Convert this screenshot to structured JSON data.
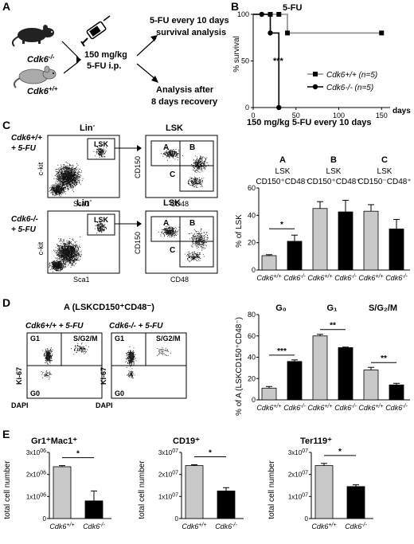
{
  "panels": {
    "A": {
      "letter": "A",
      "ko_label": "Cdk6",
      "ko_sup": "-/-",
      "wt_label": "Cdk6",
      "wt_sup": "+/+",
      "dose_line1": "150 mg/kg",
      "dose_line2": "5-FU i.p.",
      "outcome1_line1": "5-FU every 10 days",
      "outcome1_line2": "survival analysis",
      "outcome2_line1": "Analysis after",
      "outcome2_line2": "8 days recovery"
    },
    "B": {
      "letter": "B",
      "treatment": "150 mg/kg 5-FU every 10 days",
      "significance": "***",
      "days_label": "days"
    },
    "C": {
      "letter": "C",
      "flow_wt_label": "Cdk6+/+",
      "flow_ko_label": "Cdk6-/-",
      "flow_treatment": "+ 5-FU",
      "plot1_title": "Lin",
      "plot1_title_sup": "-",
      "plot2_title": "LSK",
      "gate_lsk": "LSK",
      "gate_a": "A",
      "gate_b": "B",
      "gate_c": "C",
      "xaxis_sca1": "Sca1",
      "yaxis_ckit": "c-kit",
      "xaxis_cd48": "CD48",
      "yaxis_cd150": "CD150",
      "group_A_letter": "A",
      "group_A_name": "LSK",
      "group_A_marker": "CD150⁺CD48⁻",
      "group_B_letter": "B",
      "group_B_name": "LSK",
      "group_B_marker": "CD150⁺CD48⁺",
      "group_C_letter": "C",
      "group_C_name": "LSK",
      "group_C_marker": "CD150⁻CD48⁺"
    },
    "D": {
      "letter": "D",
      "title": "A (LSKCD150⁺CD48⁻)",
      "wt_title": "Cdk6+/+ + 5-FU",
      "ko_title": "Cdk6-/- + 5-FU",
      "gate_g1": "G1",
      "gate_s": "S/G2/M",
      "gate_g0": "G0",
      "yaxis_ki67": "Ki-67",
      "xaxis_dapi": "DAPI",
      "phase_g0": "G₀",
      "phase_g1": "G₁",
      "phase_s": "S/G₂/M"
    },
    "E": {
      "letter": "E"
    }
  },
  "genotype_labels": {
    "wt": "Cdk6+/+",
    "ko": "Cdk6-/-"
  },
  "colors": {
    "wt": "#c8c8c8",
    "ko": "#000000",
    "survival_wt": "#8a8a8a",
    "survival_ko": "#000000"
  },
  "chart_data": [
    {
      "id": "survival",
      "type": "line",
      "title": "5-FU",
      "xlabel": "",
      "ylabel": "% survival",
      "xlim": [
        0,
        160
      ],
      "ylim": [
        0,
        100
      ],
      "xticks": [
        0,
        50,
        100,
        150
      ],
      "yticks": [
        0,
        50,
        100
      ],
      "legend_position": "center-right",
      "series": [
        {
          "name": "Cdk6+/+ (n=5)",
          "x": [
            0,
            20,
            30,
            40,
            150
          ],
          "y": [
            100,
            100,
            100,
            80,
            80
          ],
          "marker": "square",
          "step": true
        },
        {
          "name": "Cdk6-/- (n=5)",
          "x": [
            0,
            10,
            20,
            30
          ],
          "y": [
            100,
            100,
            80,
            0
          ],
          "marker": "circle",
          "step": true
        }
      ]
    },
    {
      "id": "lsk_bars",
      "type": "bar",
      "ylabel": "% of LSK",
      "ylim": [
        0,
        60
      ],
      "yticks": [
        0,
        20,
        40,
        60
      ],
      "categories": [
        "Cdk6+/+",
        "Cdk6-/-",
        "Cdk6+/+",
        "Cdk6-/-",
        "Cdk6+/+",
        "Cdk6-/-"
      ],
      "values": [
        10.5,
        21,
        45,
        42.5,
        43,
        30
      ],
      "errors": [
        0.7,
        4.5,
        5,
        8.5,
        4.8,
        7
      ],
      "colors": [
        "#c8c8c8",
        "#000000",
        "#c8c8c8",
        "#000000",
        "#c8c8c8",
        "#000000"
      ],
      "significance": [
        {
          "pair": [
            0,
            1
          ],
          "label": "*"
        }
      ]
    },
    {
      "id": "cellcycle_bars",
      "type": "bar",
      "ylabel": "% of A (LSKCD150⁺CD48⁻)",
      "ylim": [
        0,
        80
      ],
      "yticks": [
        0,
        20,
        40,
        60,
        80
      ],
      "categories": [
        "Cdk6+/+",
        "Cdk6-/-",
        "Cdk6+/+",
        "Cdk6-/-",
        "Cdk6+/+",
        "Cdk6-/-"
      ],
      "values": [
        11,
        36,
        60,
        49,
        28,
        14
      ],
      "errors": [
        1.5,
        1.5,
        1.5,
        0.5,
        2.5,
        1.5
      ],
      "colors": [
        "#c8c8c8",
        "#000000",
        "#c8c8c8",
        "#000000",
        "#c8c8c8",
        "#000000"
      ],
      "significance": [
        {
          "pair": [
            0,
            1
          ],
          "label": "***"
        },
        {
          "pair": [
            2,
            3
          ],
          "label": "**"
        },
        {
          "pair": [
            4,
            5
          ],
          "label": "**"
        }
      ]
    },
    {
      "id": "gr1mac1",
      "type": "bar",
      "title": "Gr1⁺Mac1⁺",
      "ylabel": "total cell number",
      "ylim": [
        0,
        3000000
      ],
      "yticks": [
        0,
        1000000,
        2000000,
        3000000
      ],
      "ytick_labels": [
        "0",
        "1x10^06",
        "2x10^06",
        "3x10^06"
      ],
      "categories": [
        "Cdk6+/+",
        "Cdk6-/-"
      ],
      "values": [
        2350000,
        800000
      ],
      "errors": [
        50000,
        450000
      ],
      "colors": [
        "#c8c8c8",
        "#000000"
      ],
      "significance": [
        {
          "pair": [
            0,
            1
          ],
          "label": "*"
        }
      ]
    },
    {
      "id": "cd19",
      "type": "bar",
      "title": "CD19⁺",
      "ylabel": "total cell number",
      "ylim": [
        0,
        30000000
      ],
      "yticks": [
        0,
        10000000,
        20000000,
        30000000
      ],
      "ytick_labels": [
        "0",
        "1x10^07",
        "2x10^07",
        "3x10^07"
      ],
      "categories": [
        "Cdk6+/+",
        "Cdk6-/-"
      ],
      "values": [
        24000000,
        12500000
      ],
      "errors": [
        400000,
        1500000
      ],
      "colors": [
        "#c8c8c8",
        "#000000"
      ],
      "significance": [
        {
          "pair": [
            0,
            1
          ],
          "label": "*"
        }
      ]
    },
    {
      "id": "ter119",
      "type": "bar",
      "title": "Ter119⁺",
      "ylabel": "total cell number",
      "ylim": [
        0,
        30000000
      ],
      "yticks": [
        0,
        10000000,
        20000000,
        30000000
      ],
      "ytick_labels": [
        "0",
        "1x10^07",
        "2x10^07",
        "3x10^07"
      ],
      "categories": [
        "Cdk6+/+",
        "Cdk6-/-"
      ],
      "values": [
        24000000,
        14500000
      ],
      "errors": [
        1000000,
        800000
      ],
      "colors": [
        "#c8c8c8",
        "#000000"
      ],
      "significance": [
        {
          "pair": [
            0,
            1
          ],
          "label": "*"
        }
      ]
    }
  ]
}
